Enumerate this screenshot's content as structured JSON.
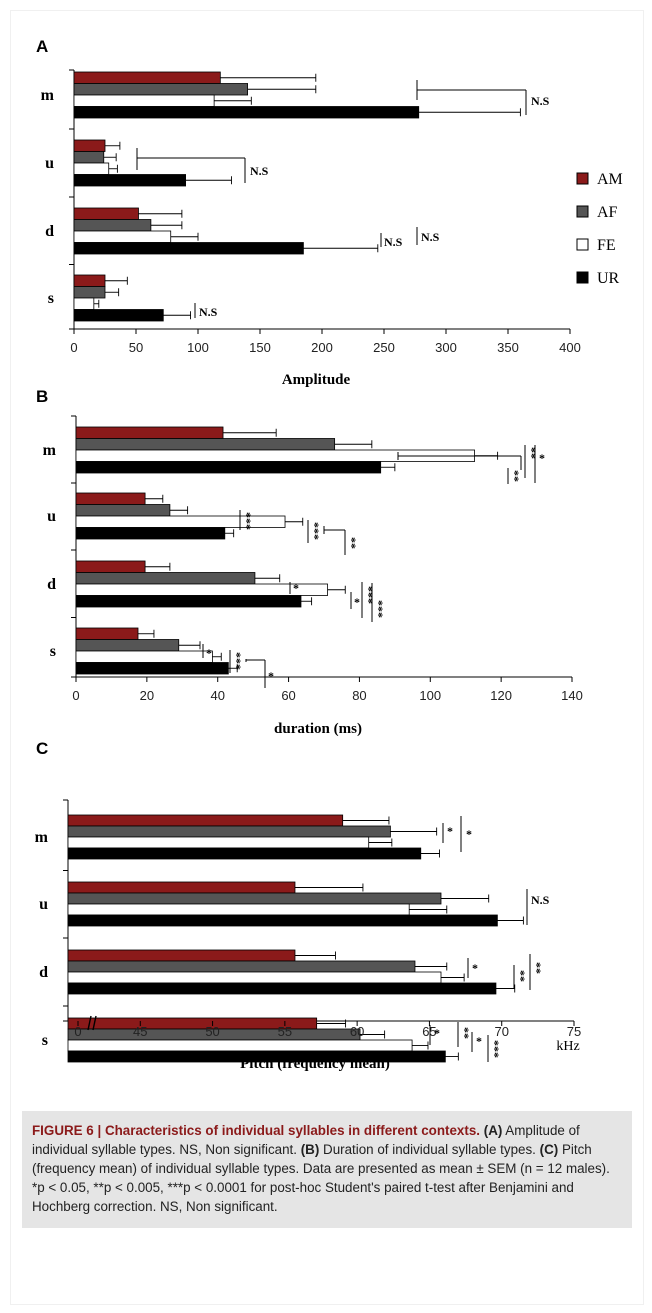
{
  "colors": {
    "AM": "#8b1a1a",
    "AF": "#555555",
    "FE": "#ffffff",
    "UR": "#000000",
    "caption_title": "#8b1a1a",
    "caption_bg": "#e5e5e5"
  },
  "legend": {
    "items": [
      "AM",
      "AF",
      "FE",
      "UR"
    ],
    "placement": "right of panel A"
  },
  "chart_data": [
    {
      "panel": "A",
      "type": "bar",
      "orientation": "horizontal",
      "categories": [
        "m",
        "u",
        "d",
        "s"
      ],
      "series": [
        {
          "name": "AM",
          "values": [
            118,
            25,
            52,
            25
          ],
          "sem": [
            77,
            12,
            35,
            18
          ]
        },
        {
          "name": "AF",
          "values": [
            140,
            24,
            62,
            25
          ],
          "sem": [
            55,
            10,
            25,
            11
          ]
        },
        {
          "name": "FE",
          "values": [
            113,
            28,
            78,
            16
          ],
          "sem": [
            30,
            7,
            22,
            4
          ]
        },
        {
          "name": "UR",
          "values": [
            278,
            90,
            185,
            72
          ],
          "sem": [
            82,
            37,
            60,
            22
          ]
        }
      ],
      "xlabel": "Amplitude",
      "xlim": [
        0,
        400
      ],
      "xticks": [
        "0",
        "50",
        "100",
        "150",
        "200",
        "250",
        "300",
        "350",
        "400"
      ],
      "annotations": [
        "N.S",
        "N.S",
        "N.S",
        "N.S",
        "N.S"
      ]
    },
    {
      "panel": "B",
      "type": "bar",
      "orientation": "horizontal",
      "categories": [
        "m",
        "u",
        "d",
        "s"
      ],
      "series": [
        {
          "name": "AM",
          "values": [
            41.5,
            19.5,
            19.5,
            17.5
          ],
          "sem": [
            15,
            5,
            7,
            4.5
          ]
        },
        {
          "name": "AF",
          "values": [
            73,
            26.5,
            50.5,
            29
          ],
          "sem": [
            10.5,
            5,
            7,
            6
          ]
        },
        {
          "name": "FE",
          "values": [
            112.5,
            59,
            71,
            38.5
          ],
          "sem": [
            6.5,
            5,
            5,
            2.5
          ]
        },
        {
          "name": "UR",
          "values": [
            86,
            42,
            63.5,
            43
          ],
          "sem": [
            4,
            2.5,
            3,
            2.5
          ]
        }
      ],
      "xlabel": "duration (ms)",
      "xlim": [
        0,
        140
      ],
      "xticks": [
        "0",
        "20",
        "40",
        "60",
        "80",
        "100",
        "120",
        "140"
      ],
      "annotations": [
        "**",
        "**",
        "*",
        "***",
        "***",
        "**",
        "*",
        "*",
        "***",
        "***",
        "*",
        "***",
        "*"
      ]
    },
    {
      "panel": "C",
      "type": "bar",
      "orientation": "horizontal",
      "categories": [
        "m",
        "u",
        "d",
        "s"
      ],
      "series": [
        {
          "name": "AM",
          "values": [
            59,
            55.7,
            55.7,
            57.2
          ],
          "sem": [
            3.2,
            4.7,
            2.8,
            2
          ]
        },
        {
          "name": "AF",
          "values": [
            62.3,
            65.8,
            64,
            60.2
          ],
          "sem": [
            3.2,
            3.3,
            2.2,
            1.7
          ]
        },
        {
          "name": "FE",
          "values": [
            60.8,
            63.6,
            65.8,
            63.8
          ],
          "sem": [
            1.6,
            2.6,
            1.6,
            1.1
          ]
        },
        {
          "name": "UR",
          "values": [
            64.4,
            69.7,
            69.6,
            66.1
          ],
          "sem": [
            1.3,
            1.8,
            1.3,
            0.9
          ]
        }
      ],
      "xlabel": "Pitch (frequency mean)",
      "xunit": "kHz",
      "xlim": [
        40,
        75
      ],
      "axis_break": true,
      "xticks": [
        "0",
        "45",
        "50",
        "55",
        "60",
        "65",
        "70",
        "75"
      ],
      "annotations": [
        "*",
        "*",
        "N.S",
        "*",
        "**",
        "**",
        "*",
        "**",
        "*",
        "***"
      ]
    }
  ],
  "caption": {
    "title": "FIGURE 6 | Characteristics of individual syllables in different contexts.",
    "a_label": "(A)",
    "a_text": " Amplitude of individual syllable types. NS, Non significant. ",
    "b_label": "(B)",
    "b_text": " Duration of individual syllable types. ",
    "c_label": "(C)",
    "c_text": " Pitch (frequency mean) of individual syllable types. Data are presented as mean ± SEM (n = 12 males). *p < 0.05, **p < 0.005, ***p < 0.0001 for post-hoc Student's paired t-test after Benjamini and Hochberg correction. NS, Non significant."
  }
}
